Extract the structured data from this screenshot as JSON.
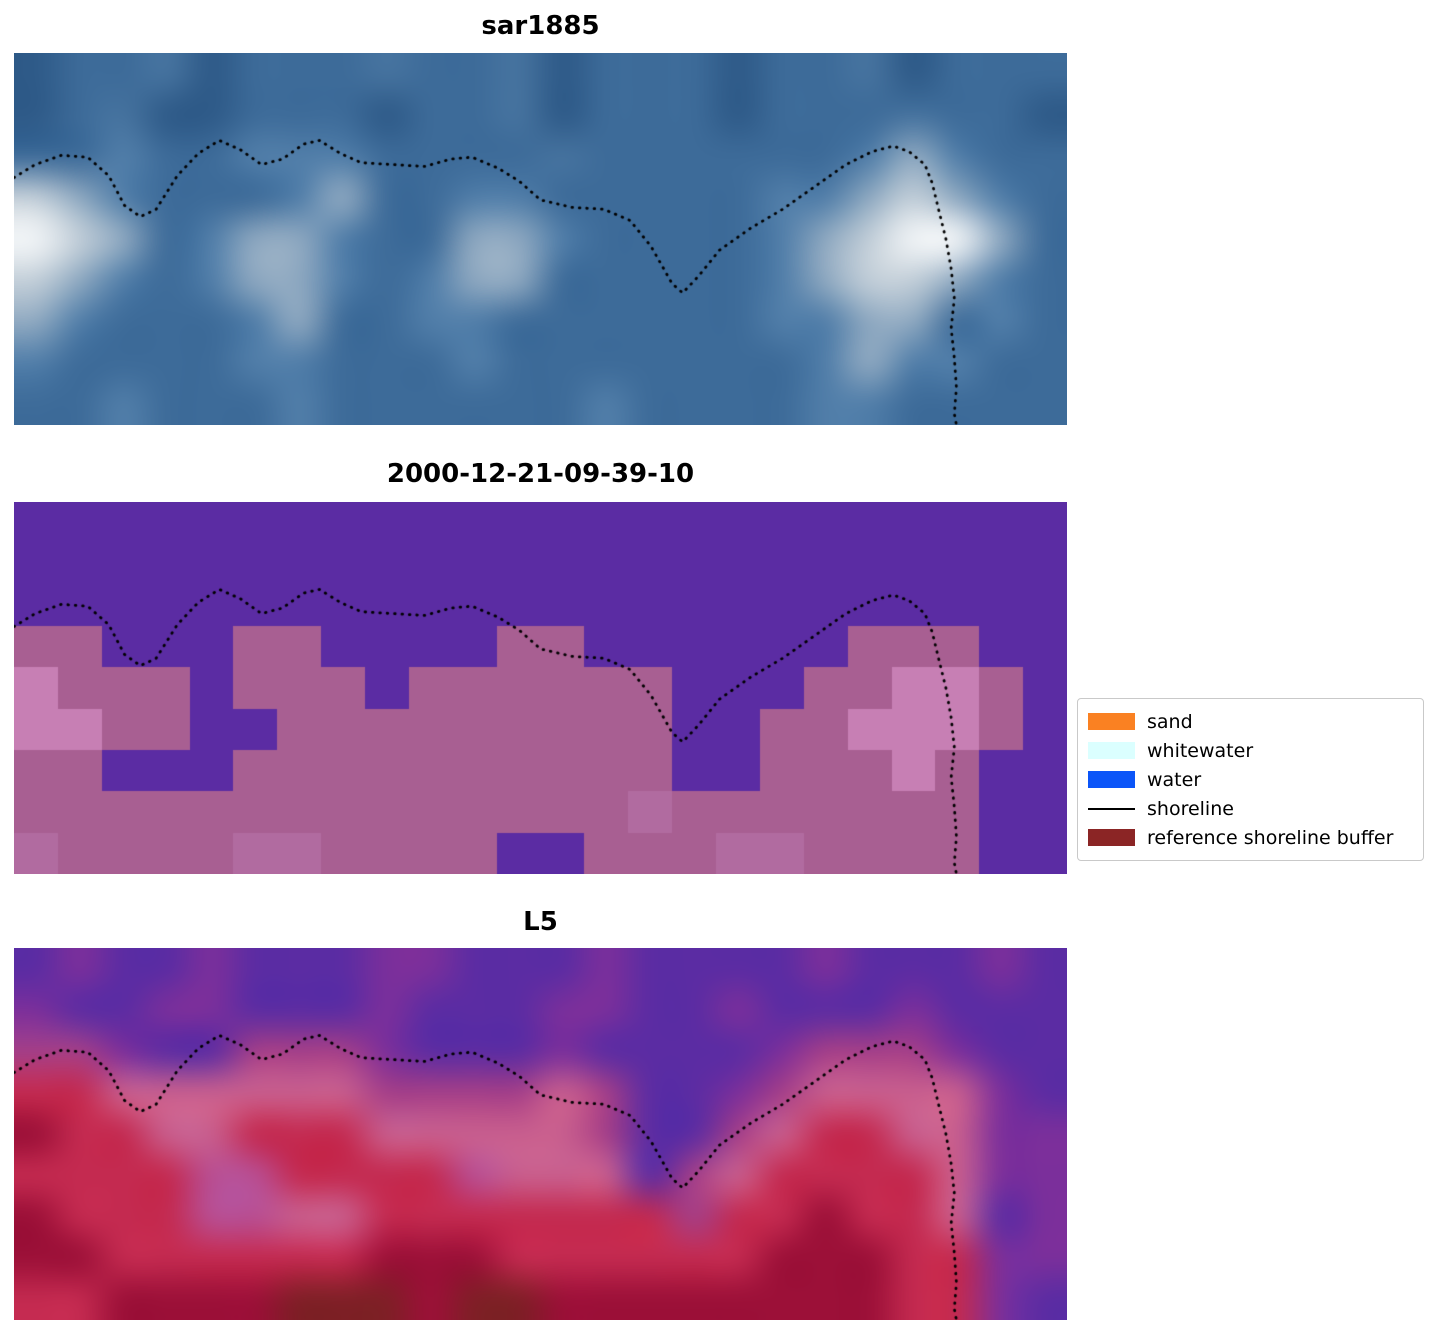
{
  "chart_data": {
    "type": "heatmap",
    "title": "",
    "panels": [
      {
        "title": "sar1885",
        "smooth": true,
        "palette": {
          "a": "#2e5a88",
          "b": "#3d6b99",
          "g": "#46739f",
          "c": "#517ea9",
          "h": "#6b90b2",
          "d": "#8fa9c1",
          "e": "#c3cfd9",
          "f": "#f2f5f7"
        },
        "grid": [
          "abbgabbbgbbgabbbabbgabbb",
          "abgaabbbabbgabbbabbbgbba",
          "bbcbbcccbbbbgbbbbbbcdcbb",
          "edcbbbcdbbccbbbbbccdedcb",
          "fedbcddcbbddcbbbbcdeffdb",
          "edcbcddcbcddbbbbbcdeedcb",
          "dcbbbcdbbccbbbbbbccddbcb",
          "cbbbbccbbbcbbbbbbbcdccbb",
          "bbcbbbcbbbbbbcbbbbccbbbb"
        ]
      },
      {
        "title": "2000-12-21-09-39-10",
        "smooth": false,
        "palette": {
          "p": "#5b2ca3",
          "q": "#8a4b9d",
          "m": "#a85f92",
          "n": "#b16ba0",
          "r": "#c77fb4"
        },
        "grid": [
          "pppppppppppppppppppppppp",
          "pppppppppppppppppppppppp",
          "pppppppppppppppppppppppp",
          "mmpppmmppppmmppppppmmmpp",
          "rmmmpmmmpmmmmmmpppmmrrmp",
          "rrmmppmmmmmmmmmppmmrrrmp",
          "mmpppmmmmmmmmmmppmmmrmpp",
          "mmmmmmmmmmmmmmnmmmmmmmpp",
          "nmmmmnnmmmmppmmmnnmmmmpp"
        ]
      },
      {
        "title": "L5",
        "smooth": true,
        "palette": {
          "p": "#5b2ca3",
          "v": "#7b2f9b",
          "k": "#a53f88",
          "t": "#b84f94",
          "s": "#c95f8e",
          "r": "#c42a50",
          "d": "#9c1038",
          "w": "#7f1f26"
        },
        "grid": [
          "pvppvpppvvpppvppppvpppvp",
          "vppvvpppvpppvvppvpppvppp",
          "kkvppkkkvpppvppppvkkkvpp",
          "rrsssssskkkkskppvkssssvp",
          "drrssrrrssssskppksrrssvv",
          "rrrrttrrrrtssspksrrrrsvv",
          "drrrttssrrrrrrrkrrdrrspv",
          "ddrrrrrrdddrrrrrrdddrrvv",
          "rrddddwwwdwwddddddddrrvp"
        ]
      }
    ],
    "shoreline": [
      [
        0.0,
        0.335
      ],
      [
        0.02,
        0.3
      ],
      [
        0.045,
        0.275
      ],
      [
        0.07,
        0.28
      ],
      [
        0.09,
        0.33
      ],
      [
        0.105,
        0.41
      ],
      [
        0.12,
        0.44
      ],
      [
        0.135,
        0.42
      ],
      [
        0.155,
        0.33
      ],
      [
        0.175,
        0.27
      ],
      [
        0.195,
        0.235
      ],
      [
        0.215,
        0.26
      ],
      [
        0.235,
        0.3
      ],
      [
        0.255,
        0.285
      ],
      [
        0.275,
        0.245
      ],
      [
        0.29,
        0.235
      ],
      [
        0.31,
        0.27
      ],
      [
        0.33,
        0.295
      ],
      [
        0.36,
        0.3
      ],
      [
        0.39,
        0.305
      ],
      [
        0.415,
        0.285
      ],
      [
        0.435,
        0.28
      ],
      [
        0.46,
        0.31
      ],
      [
        0.48,
        0.345
      ],
      [
        0.5,
        0.395
      ],
      [
        0.53,
        0.415
      ],
      [
        0.56,
        0.42
      ],
      [
        0.585,
        0.45
      ],
      [
        0.605,
        0.52
      ],
      [
        0.625,
        0.62
      ],
      [
        0.635,
        0.645
      ],
      [
        0.65,
        0.6
      ],
      [
        0.67,
        0.53
      ],
      [
        0.7,
        0.47
      ],
      [
        0.73,
        0.42
      ],
      [
        0.76,
        0.36
      ],
      [
        0.79,
        0.3
      ],
      [
        0.815,
        0.265
      ],
      [
        0.835,
        0.25
      ],
      [
        0.85,
        0.265
      ],
      [
        0.865,
        0.3
      ],
      [
        0.872,
        0.35
      ],
      [
        0.878,
        0.42
      ],
      [
        0.885,
        0.5
      ],
      [
        0.89,
        0.58
      ],
      [
        0.893,
        0.66
      ],
      [
        0.89,
        0.74
      ],
      [
        0.893,
        0.82
      ],
      [
        0.895,
        0.9
      ],
      [
        0.893,
        0.97
      ],
      [
        0.895,
        1.0
      ]
    ],
    "shoreline_style": {
      "color": "#000000",
      "dash": [
        0.6,
        6.8
      ],
      "width": 2.8
    },
    "legend": {
      "items": [
        {
          "label": "sand",
          "type": "patch",
          "color": "#fa8122"
        },
        {
          "label": "whitewater",
          "type": "patch",
          "color": "#dbffff"
        },
        {
          "label": "water",
          "type": "patch",
          "color": "#0b55f8"
        },
        {
          "label": "shoreline",
          "type": "line",
          "color": "#000000"
        },
        {
          "label": "reference shoreline buffer",
          "type": "patch",
          "color": "#8b2525"
        }
      ]
    }
  }
}
